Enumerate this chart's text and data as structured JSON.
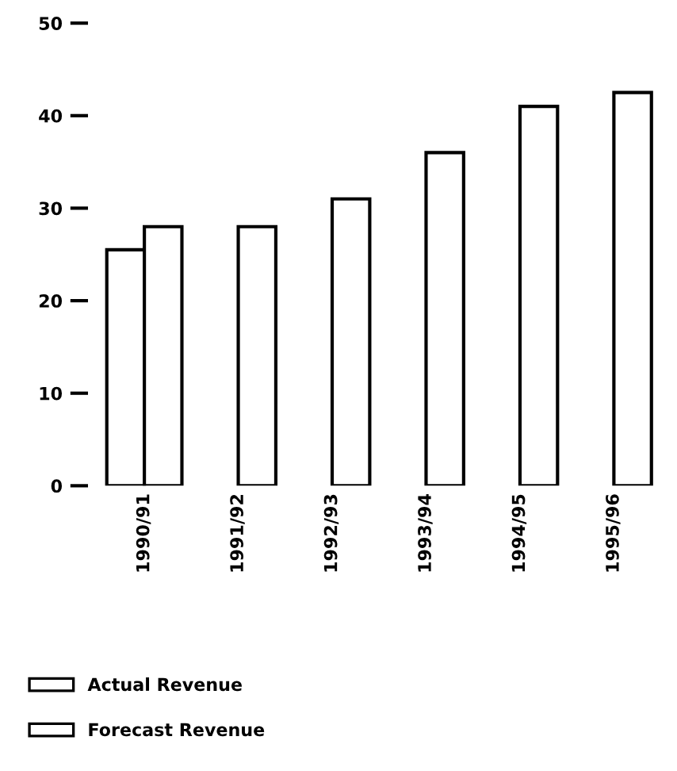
{
  "chart_data": {
    "type": "bar",
    "categories": [
      "1990/91",
      "1991/92",
      "1992/93",
      "1993/94",
      "1994/95",
      "1995/96"
    ],
    "series": [
      {
        "name": "Actual Revenue",
        "color": "#ffffff",
        "values": [
          25.5,
          null,
          null,
          null,
          null,
          null
        ]
      },
      {
        "name": "Forecast Revenue",
        "color": "#ffffff",
        "values": [
          28,
          28,
          31,
          36,
          41,
          42.5
        ]
      }
    ],
    "ylim": [
      0,
      50
    ],
    "yticks": [
      0,
      10,
      20,
      30,
      40,
      50
    ],
    "grid": false,
    "legend": "bottom left"
  }
}
